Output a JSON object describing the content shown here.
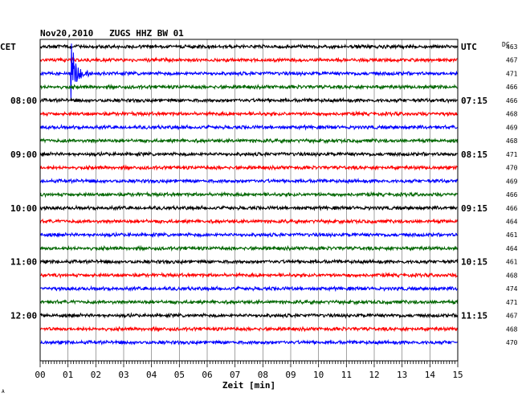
{
  "chart_data": {
    "type": "line",
    "title": "Nov20,2010   ZUGS HHZ BW 01",
    "left_axis_label": "CET",
    "right_axis_label": "UTC",
    "dc_header": "DC",
    "xlabel": "Zeit [min]",
    "x_ticks": [
      "00",
      "01",
      "02",
      "03",
      "04",
      "05",
      "06",
      "07",
      "08",
      "09",
      "10",
      "11",
      "12",
      "13",
      "14",
      "15"
    ],
    "xlim": [
      0,
      15
    ],
    "left_hour_labels": [
      {
        "row": 4,
        "text": "08:00"
      },
      {
        "row": 8,
        "text": "09:00"
      },
      {
        "row": 12,
        "text": "10:00"
      },
      {
        "row": 16,
        "text": "11:00"
      },
      {
        "row": 20,
        "text": "12:00"
      }
    ],
    "right_hour_labels": [
      {
        "row": 0,
        "text": "UTC"
      },
      {
        "row": 4,
        "text": "07:15"
      },
      {
        "row": 8,
        "text": "08:15"
      },
      {
        "row": 12,
        "text": "09:15"
      },
      {
        "row": 16,
        "text": "10:15"
      },
      {
        "row": 20,
        "text": "11:15"
      }
    ],
    "dc_values": [
      463,
      467,
      471,
      466,
      466,
      468,
      469,
      468,
      471,
      470,
      469,
      466,
      466,
      464,
      461,
      464,
      461,
      468,
      474,
      471,
      467,
      468,
      470
    ],
    "trace_color_cycle": [
      "#000000",
      "#ff0000",
      "#0000ff",
      "#006600"
    ],
    "event": {
      "row": 2,
      "start_min": 1.1,
      "duration_min": 1.5,
      "peak_amplitude": 2.6
    },
    "footer_mark": "A"
  }
}
